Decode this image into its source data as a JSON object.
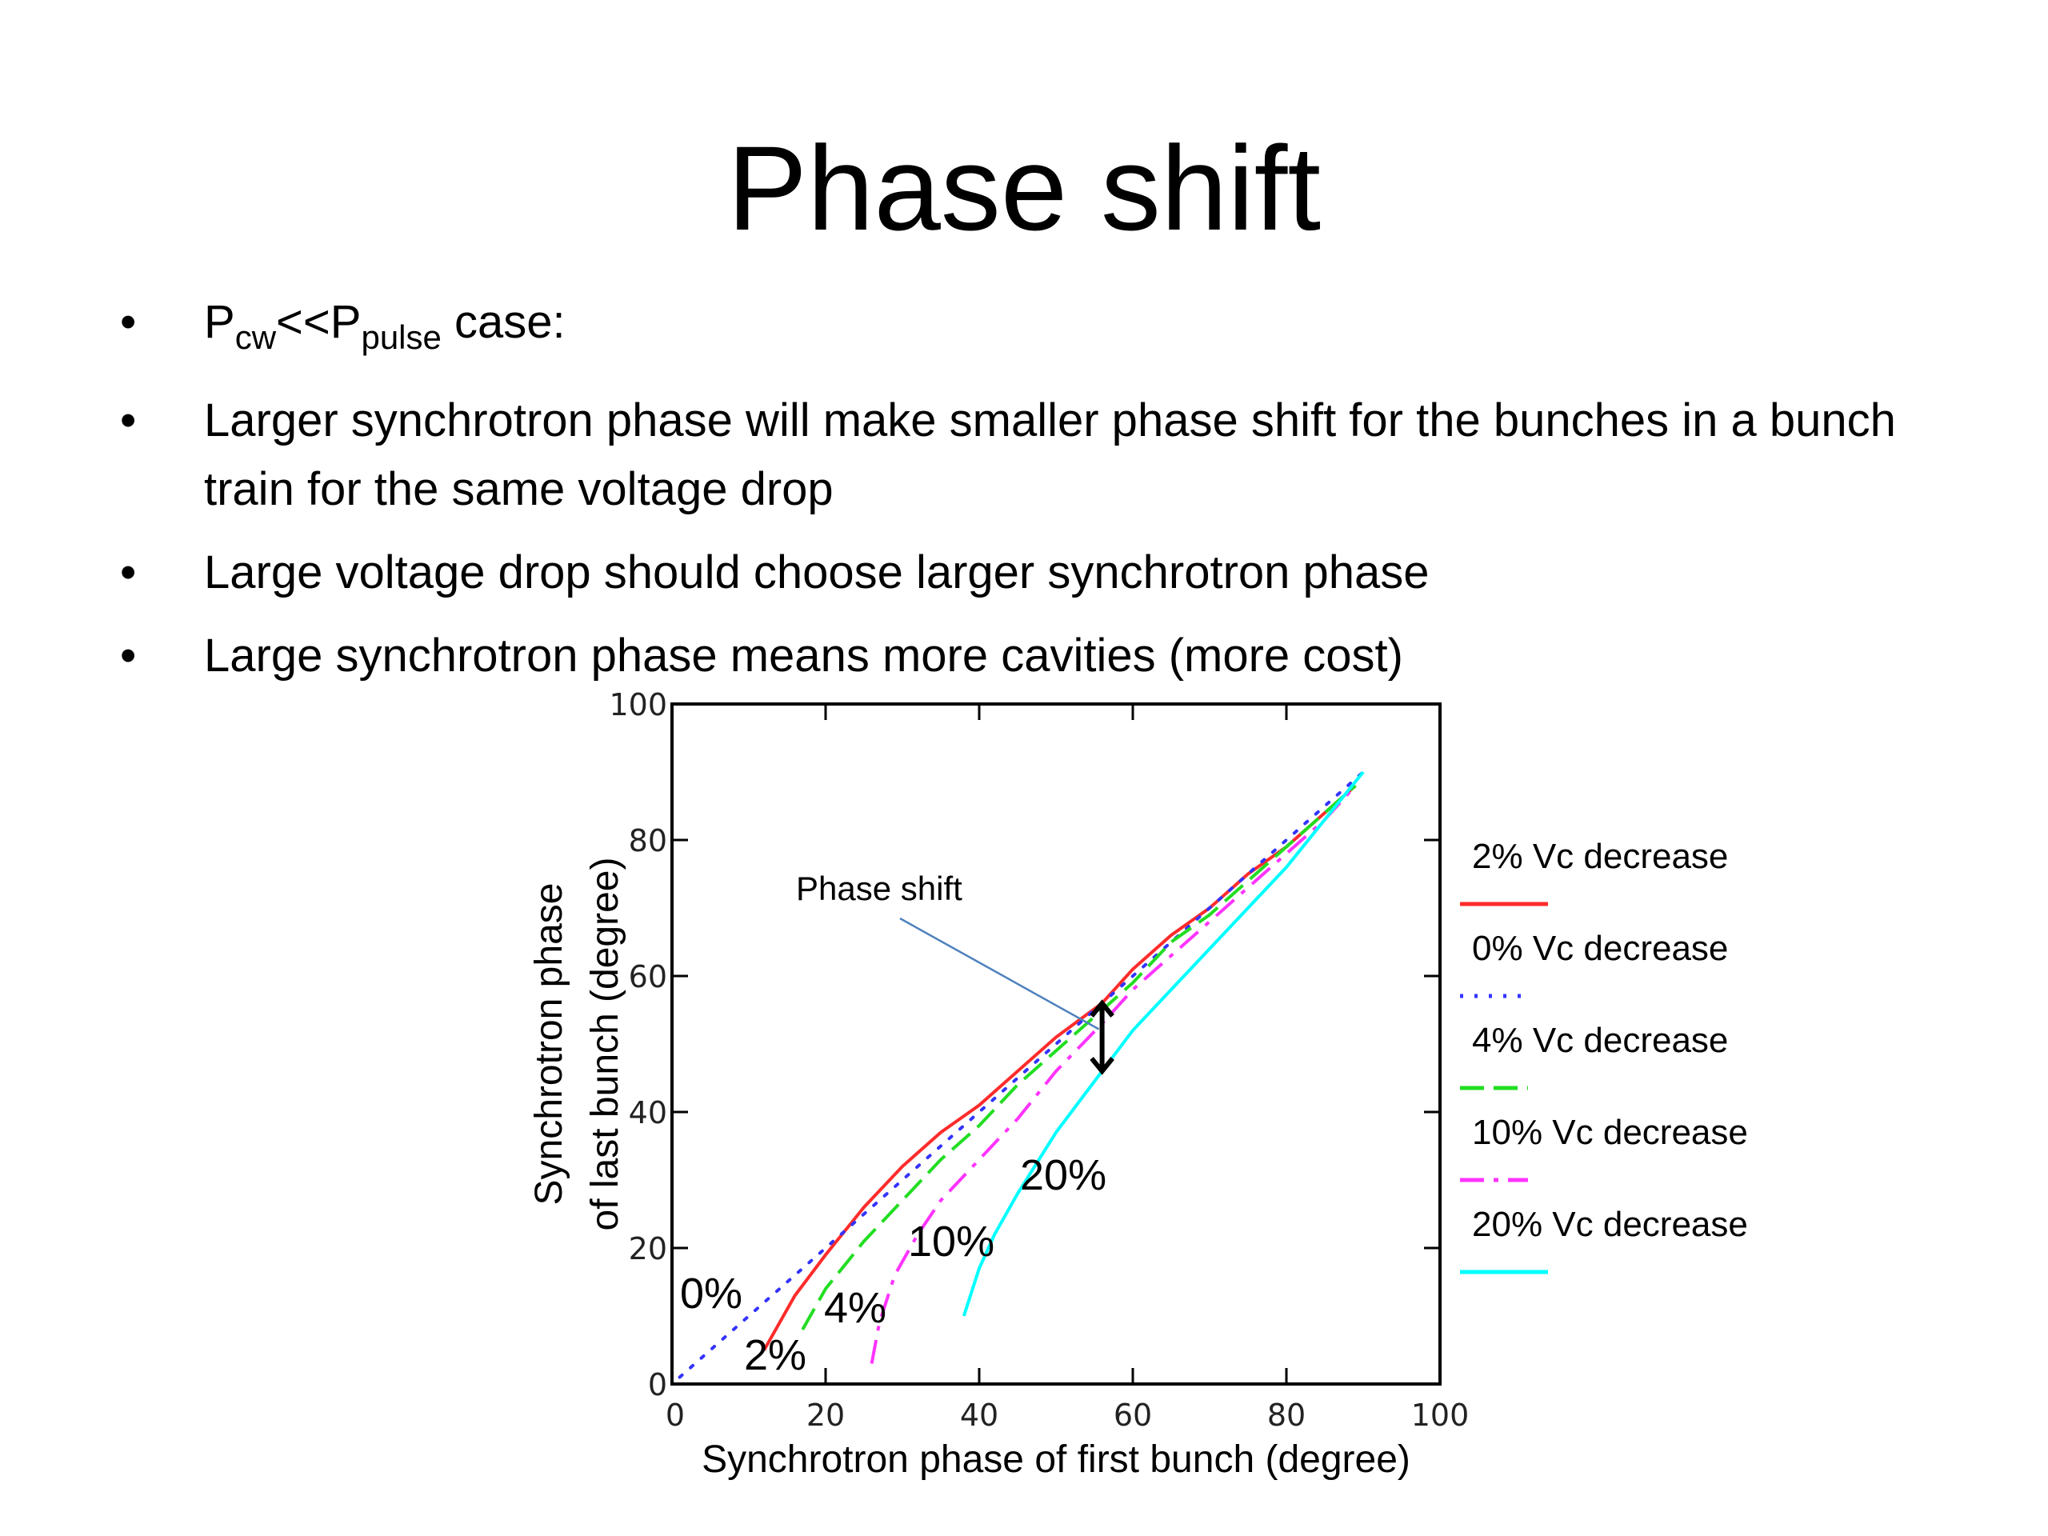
{
  "slide": {
    "title": "Phase shift",
    "bullets": [
      {
        "parts": [
          {
            "text": "P",
            "sub": false
          },
          {
            "text": "cw",
            "sub": true
          },
          {
            "text": "<<P",
            "sub": false
          },
          {
            "text": "pulse",
            "sub": true
          },
          {
            "text": " case:",
            "sub": false
          }
        ]
      },
      {
        "parts": [
          {
            "text": "Larger synchrotron phase will make smaller phase shift for the bunches in a bunch train for the same voltage drop",
            "sub": false
          }
        ]
      },
      {
        "parts": [
          {
            "text": "Large voltage drop should choose larger synchrotron phase",
            "sub": false
          }
        ]
      },
      {
        "parts": [
          {
            "text": "Large synchrotron phase means more cavities (more cost)",
            "sub": false
          }
        ]
      }
    ],
    "bullet_glyph": "•"
  },
  "chart_data": {
    "type": "line",
    "xlabel": "Synchrotron phase of first bunch (degree)",
    "ylabel_lines": [
      "Synchrotron phase",
      "of last bunch (degree)"
    ],
    "xlim": [
      0,
      100
    ],
    "ylim": [
      0,
      100
    ],
    "xticks": [
      0,
      20,
      40,
      60,
      80,
      100
    ],
    "yticks": [
      0,
      20,
      40,
      60,
      80,
      100
    ],
    "grid": false,
    "legend_position": "right",
    "series": [
      {
        "name": "2% Vc decrease",
        "label": "2%",
        "color": "#ff2b2b",
        "dash": "solid",
        "x": [
          12,
          16,
          20,
          25,
          30,
          35,
          40,
          45,
          50,
          56,
          60,
          65,
          70,
          75,
          80,
          85,
          89
        ],
        "y": [
          5,
          13,
          19,
          26,
          32,
          37,
          41,
          46,
          51,
          56,
          61,
          66,
          70,
          75,
          79,
          84,
          88
        ]
      },
      {
        "name": "0% Vc decrease",
        "label": "0%",
        "color": "#3333ff",
        "dash": "dotted",
        "x": [
          1,
          10,
          20,
          30,
          40,
          50,
          60,
          70,
          80,
          90
        ],
        "y": [
          1,
          10,
          20,
          30,
          40,
          50,
          60,
          70,
          80,
          90
        ]
      },
      {
        "name": "4% Vc decrease",
        "label": "4%",
        "color": "#22dd22",
        "dash": "longdash",
        "x": [
          17,
          20,
          25,
          30,
          35,
          40,
          45,
          50,
          56,
          60,
          65,
          70,
          75,
          80,
          85,
          89
        ],
        "y": [
          8,
          14,
          21,
          27,
          33,
          38,
          44,
          49,
          55,
          59,
          65,
          69,
          74,
          79,
          84,
          88
        ]
      },
      {
        "name": "10% Vc decrease",
        "label": "10%",
        "color": "#ff33ff",
        "dash": "dashdot",
        "x": [
          26,
          27,
          29,
          32,
          35,
          40,
          45,
          50,
          56,
          60,
          65,
          70,
          75,
          80,
          85,
          89
        ],
        "y": [
          3,
          9,
          16,
          22,
          27,
          33,
          39,
          46,
          53,
          58,
          63,
          68,
          73,
          78,
          83,
          88
        ]
      },
      {
        "name": "20% Vc decrease",
        "label": "20%",
        "color": "#00ffff",
        "dash": "solid",
        "x": [
          38,
          40,
          42,
          45,
          50,
          56,
          60,
          65,
          70,
          75,
          80,
          85,
          90
        ],
        "y": [
          10,
          17,
          22,
          28,
          37,
          46,
          52,
          58,
          64,
          70,
          76,
          83,
          90
        ]
      }
    ],
    "annotation": {
      "text": "Phase shift",
      "arrow_at": {
        "x": 56,
        "y_top": 56,
        "y_bottom": 46
      }
    }
  }
}
